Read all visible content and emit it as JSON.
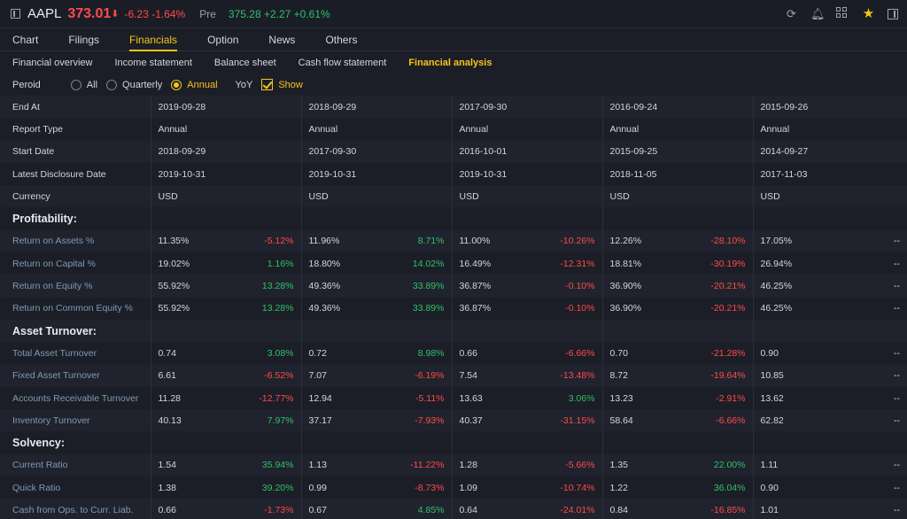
{
  "header": {
    "symbol": "AAPL",
    "price": "373.01",
    "arrow": "⬇",
    "change": "-6.23 -1.64%",
    "pre_label": "Pre",
    "pre_value": "375.28 +2.27 +0.61%"
  },
  "tabs": [
    "Chart",
    "Filings",
    "Financials",
    "Option",
    "News",
    "Others"
  ],
  "subtabs": [
    "Financial overview",
    "Income statement",
    "Balance sheet",
    "Cash flow statement",
    "Financial analysis"
  ],
  "period": {
    "label": "Peroid",
    "options": [
      "All",
      "Quarterly",
      "Annual"
    ],
    "selected": "Annual",
    "yoy_label": "YoY",
    "show_label": "Show"
  },
  "columns": [
    {
      "end_at": "2019-09-28",
      "report_type": "Annual",
      "start_date": "2018-09-29",
      "disclosure": "2019-10-31",
      "currency": "USD"
    },
    {
      "end_at": "2018-09-29",
      "report_type": "Annual",
      "start_date": "2017-09-30",
      "disclosure": "2019-10-31",
      "currency": "USD"
    },
    {
      "end_at": "2017-09-30",
      "report_type": "Annual",
      "start_date": "2016-10-01",
      "disclosure": "2019-10-31",
      "currency": "USD"
    },
    {
      "end_at": "2016-09-24",
      "report_type": "Annual",
      "start_date": "2015-09-25",
      "disclosure": "2018-11-05",
      "currency": "USD"
    },
    {
      "end_at": "2015-09-26",
      "report_type": "Annual",
      "start_date": "2014-09-27",
      "disclosure": "2017-11-03",
      "currency": "USD"
    }
  ],
  "meta_labels": {
    "end_at": "End At",
    "report_type": "Report Type",
    "start_date": "Start Date",
    "disclosure": "Latest Disclosure Date",
    "currency": "Currency"
  },
  "sections": [
    {
      "title": "Profitability:",
      "rows": [
        {
          "label": "Return on Assets %",
          "cells": [
            [
              "11.35%",
              "-5.12%"
            ],
            [
              "11.96%",
              "8.71%"
            ],
            [
              "11.00%",
              "-10.26%"
            ],
            [
              "12.26%",
              "-28.10%"
            ],
            [
              "17.05%",
              "--"
            ]
          ]
        },
        {
          "label": "Return on Capital %",
          "cells": [
            [
              "19.02%",
              "1.16%"
            ],
            [
              "18.80%",
              "14.02%"
            ],
            [
              "16.49%",
              "-12.31%"
            ],
            [
              "18.81%",
              "-30.19%"
            ],
            [
              "26.94%",
              "--"
            ]
          ]
        },
        {
          "label": "Return on Equity %",
          "cells": [
            [
              "55.92%",
              "13.28%"
            ],
            [
              "49.36%",
              "33.89%"
            ],
            [
              "36.87%",
              "-0.10%"
            ],
            [
              "36.90%",
              "-20.21%"
            ],
            [
              "46.25%",
              "--"
            ]
          ]
        },
        {
          "label": "Return on Common Equity %",
          "cells": [
            [
              "55.92%",
              "13.28%"
            ],
            [
              "49.36%",
              "33.89%"
            ],
            [
              "36.87%",
              "-0.10%"
            ],
            [
              "36.90%",
              "-20.21%"
            ],
            [
              "46.25%",
              "--"
            ]
          ]
        }
      ]
    },
    {
      "title": "Asset Turnover:",
      "rows": [
        {
          "label": "Total Asset Turnover",
          "cells": [
            [
              "0.74",
              "3.08%"
            ],
            [
              "0.72",
              "8.98%"
            ],
            [
              "0.66",
              "-6.66%"
            ],
            [
              "0.70",
              "-21.28%"
            ],
            [
              "0.90",
              "--"
            ]
          ]
        },
        {
          "label": "Fixed Asset Turnover",
          "cells": [
            [
              "6.61",
              "-6.52%"
            ],
            [
              "7.07",
              "-6.19%"
            ],
            [
              "7.54",
              "-13.48%"
            ],
            [
              "8.72",
              "-19.64%"
            ],
            [
              "10.85",
              "--"
            ]
          ]
        },
        {
          "label": "Accounts Receivable Turnover",
          "cells": [
            [
              "11.28",
              "-12.77%"
            ],
            [
              "12.94",
              "-5.11%"
            ],
            [
              "13.63",
              "3.06%"
            ],
            [
              "13.23",
              "-2.91%"
            ],
            [
              "13.62",
              "--"
            ]
          ]
        },
        {
          "label": "Inventory Turnover",
          "cells": [
            [
              "40.13",
              "7.97%"
            ],
            [
              "37.17",
              "-7.93%"
            ],
            [
              "40.37",
              "-31.15%"
            ],
            [
              "58.64",
              "-6.66%"
            ],
            [
              "62.82",
              "--"
            ]
          ]
        }
      ]
    },
    {
      "title": "Solvency:",
      "rows": [
        {
          "label": "Current Ratio",
          "cells": [
            [
              "1.54",
              "35.94%"
            ],
            [
              "1.13",
              "-11.22%"
            ],
            [
              "1.28",
              "-5.66%"
            ],
            [
              "1.35",
              "22.00%"
            ],
            [
              "1.11",
              "--"
            ]
          ]
        },
        {
          "label": "Quick Ratio",
          "cells": [
            [
              "1.38",
              "39.20%"
            ],
            [
              "0.99",
              "-8.73%"
            ],
            [
              "1.09",
              "-10.74%"
            ],
            [
              "1.22",
              "36.04%"
            ],
            [
              "0.90",
              "--"
            ]
          ]
        },
        {
          "label": "Cash from Ops. to Curr. Liab.",
          "cells": [
            [
              "0.66",
              "-1.73%"
            ],
            [
              "0.67",
              "4.85%"
            ],
            [
              "0.64",
              "-24.01%"
            ],
            [
              "0.84",
              "-16.85%"
            ],
            [
              "1.01",
              "--"
            ]
          ]
        }
      ]
    }
  ]
}
